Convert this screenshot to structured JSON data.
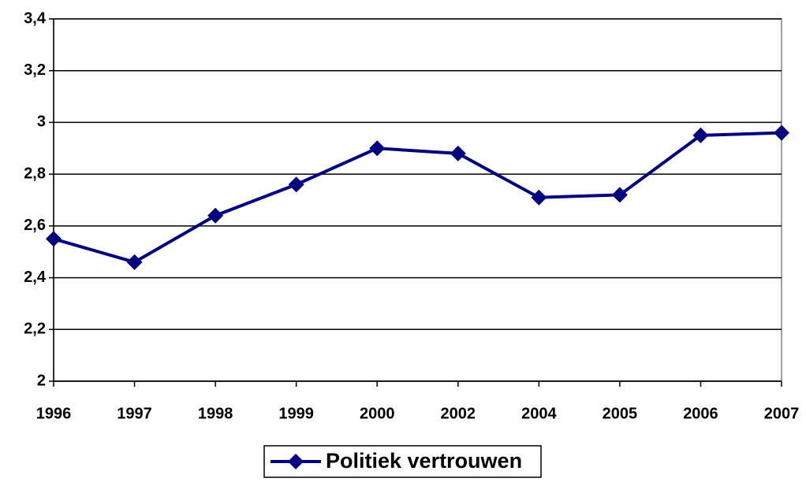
{
  "chart_data": {
    "type": "line",
    "categories": [
      "1996",
      "1997",
      "1998",
      "1999",
      "2000",
      "2002",
      "2004",
      "2005",
      "2006",
      "2007"
    ],
    "series": [
      {
        "name": "Politiek vertrouwen",
        "color": "#000080",
        "values": [
          2.55,
          2.46,
          2.64,
          2.76,
          2.9,
          2.88,
          2.71,
          2.72,
          2.95,
          2.96
        ]
      }
    ],
    "ylim": [
      2,
      3.4
    ],
    "yticks": [
      2,
      {
        "value": 2.2,
        "label": "2,2"
      },
      {
        "value": 2.4,
        "label": "2,4"
      },
      {
        "value": 2.6,
        "label": "2,6"
      },
      {
        "value": 2.8,
        "label": "2,8"
      },
      3,
      {
        "value": 3.2,
        "label": "3,2"
      },
      {
        "value": 3.4,
        "label": "3,4"
      }
    ],
    "grid": true,
    "legend": "bottom"
  }
}
